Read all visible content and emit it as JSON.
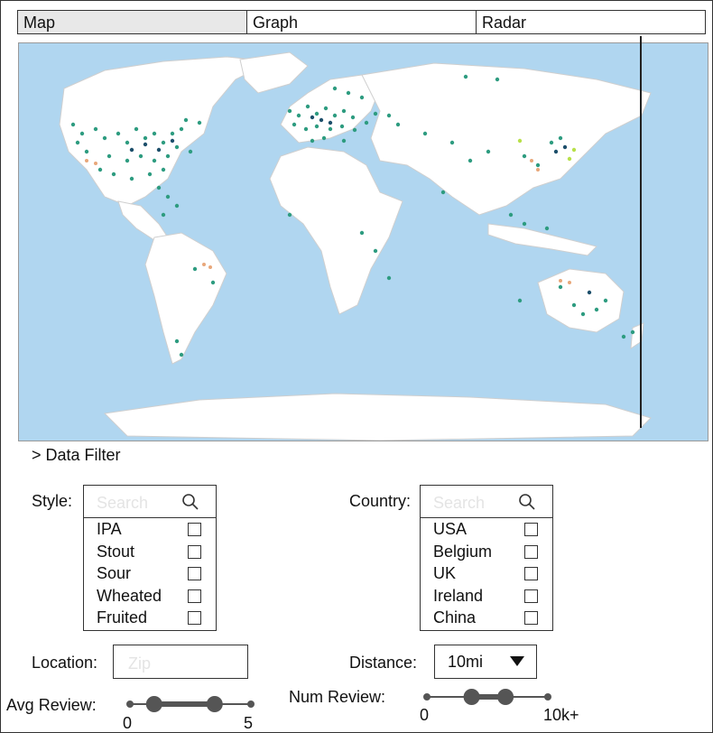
{
  "tabs": [
    {
      "label": "Map",
      "active": true
    },
    {
      "label": "Graph",
      "active": false
    },
    {
      "label": "Radar",
      "active": false
    }
  ],
  "filter": {
    "toggle_label": "> Data Filter",
    "style": {
      "label": "Style:",
      "search_placeholder": "Search",
      "options": [
        "IPA",
        "Stout",
        "Sour",
        "Wheated",
        "Fruited"
      ]
    },
    "country": {
      "label": "Country:",
      "search_placeholder": "Search",
      "options": [
        "USA",
        "Belgium",
        "UK",
        "Ireland",
        "China"
      ]
    },
    "location": {
      "label": "Location:",
      "placeholder": "Zip",
      "value": ""
    },
    "distance": {
      "label": "Distance:",
      "selected": "10mi"
    },
    "avg_review": {
      "label": "Avg Review:",
      "min_label": "0",
      "max_label": "5",
      "range_low": 0.2,
      "range_high": 0.7
    },
    "num_review": {
      "label": "Num Review:",
      "min_label": "0",
      "max_label": "10k+",
      "range_low": 0.37,
      "range_high": 0.65
    }
  },
  "colors": {
    "ocean": "#b0d6f0",
    "land": "#ffffff",
    "dot_primary": "#2e9c80",
    "dot_dark": "#1d4f6b",
    "dot_light": "#b8e04a",
    "dot_warm": "#e8a77a"
  }
}
